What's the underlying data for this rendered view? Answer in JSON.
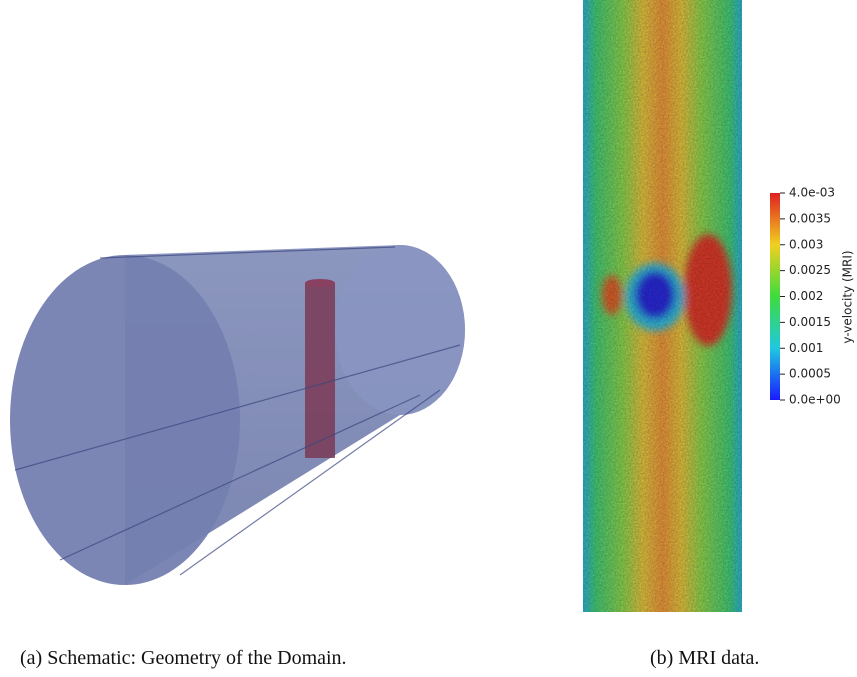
{
  "figures": [
    {
      "caption": "(a) Schematic: Geometry of the Domain."
    },
    {
      "caption": "(b) MRI data.",
      "colorbar": {
        "title": "y-velocity (MRI)",
        "lim": [
          0,
          0.004
        ],
        "ticks": [
          {
            "value": 0.004,
            "label": "4.0e-03"
          },
          0.0035,
          0.003,
          0.0025,
          0.002,
          0.0015,
          0.001,
          0.0005,
          {
            "value": 0,
            "label": "0.0e+00"
          }
        ]
      }
    }
  ]
}
